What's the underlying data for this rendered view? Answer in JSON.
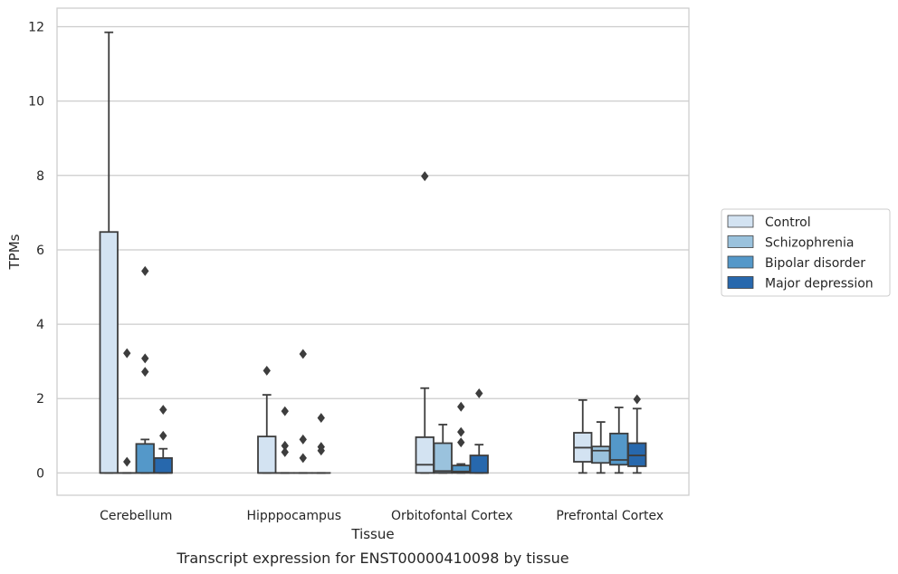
{
  "chart_data": {
    "type": "box",
    "title": "",
    "caption": "Transcript expression for ENST00000410098 by tissue",
    "xlabel": "Tissue",
    "ylabel": "TPMs",
    "ylim": [
      -0.6,
      12.5
    ],
    "yticks": [
      0,
      2,
      4,
      6,
      8,
      10,
      12
    ],
    "grid": "horizontal",
    "legend_placement": "right",
    "categories": [
      "Cerebellum",
      "Hipppocampus",
      "Orbitofontal Cortex",
      "Prefrontal Cortex"
    ],
    "series": [
      {
        "name": "Control",
        "color": "#d3e3f2",
        "boxes": [
          {
            "whislo": 0,
            "q1": 0,
            "med": 0,
            "q3": 6.48,
            "whishi": 11.85,
            "fliers": []
          },
          {
            "whislo": 0,
            "q1": 0,
            "med": 0,
            "q3": 0.98,
            "whishi": 2.1,
            "fliers": [
              2.75
            ]
          },
          {
            "whislo": 0,
            "q1": 0,
            "med": 0.22,
            "q3": 0.96,
            "whishi": 2.28,
            "fliers": [
              7.98
            ]
          },
          {
            "whislo": 0,
            "q1": 0.3,
            "med": 0.68,
            "q3": 1.08,
            "whishi": 1.96,
            "fliers": []
          }
        ]
      },
      {
        "name": "Schizophrenia",
        "color": "#9ac2dd",
        "boxes": [
          {
            "whislo": 0,
            "q1": 0,
            "med": 0,
            "q3": 0,
            "whishi": 0,
            "fliers": [
              0.3,
              3.22
            ]
          },
          {
            "whislo": 0,
            "q1": 0,
            "med": 0,
            "q3": 0,
            "whishi": 0,
            "fliers": [
              0.56,
              0.73,
              1.66
            ]
          },
          {
            "whislo": 0,
            "q1": 0,
            "med": 0.05,
            "q3": 0.8,
            "whishi": 1.3,
            "fliers": []
          },
          {
            "whislo": 0,
            "q1": 0.27,
            "med": 0.6,
            "q3": 0.71,
            "whishi": 1.37,
            "fliers": []
          }
        ]
      },
      {
        "name": "Bipolar disorder",
        "color": "#5498c9",
        "boxes": [
          {
            "whislo": 0,
            "q1": 0,
            "med": 0,
            "q3": 0.78,
            "whishi": 0.9,
            "fliers": [
              2.72,
              3.08,
              5.43
            ]
          },
          {
            "whislo": 0,
            "q1": 0,
            "med": 0,
            "q3": 0,
            "whishi": 0,
            "fliers": [
              0.4,
              0.9,
              3.2
            ]
          },
          {
            "whislo": 0,
            "q1": 0,
            "med": 0.04,
            "q3": 0.2,
            "whishi": 0.24,
            "fliers": [
              0.82,
              1.1,
              1.78
            ]
          },
          {
            "whislo": 0,
            "q1": 0.22,
            "med": 0.35,
            "q3": 1.06,
            "whishi": 1.76,
            "fliers": []
          }
        ]
      },
      {
        "name": "Major depression",
        "color": "#2768ad",
        "boxes": [
          {
            "whislo": 0,
            "q1": 0,
            "med": 0,
            "q3": 0.4,
            "whishi": 0.65,
            "fliers": [
              1.0,
              1.7
            ]
          },
          {
            "whislo": 0,
            "q1": 0,
            "med": 0,
            "q3": 0,
            "whishi": 0,
            "fliers": [
              0.6,
              0.7,
              1.48
            ]
          },
          {
            "whislo": 0,
            "q1": 0,
            "med": 0,
            "q3": 0.47,
            "whishi": 0.76,
            "fliers": [
              2.14
            ]
          },
          {
            "whislo": 0,
            "q1": 0.18,
            "med": 0.47,
            "q3": 0.8,
            "whishi": 1.73,
            "fliers": [
              1.98
            ]
          }
        ]
      }
    ]
  }
}
